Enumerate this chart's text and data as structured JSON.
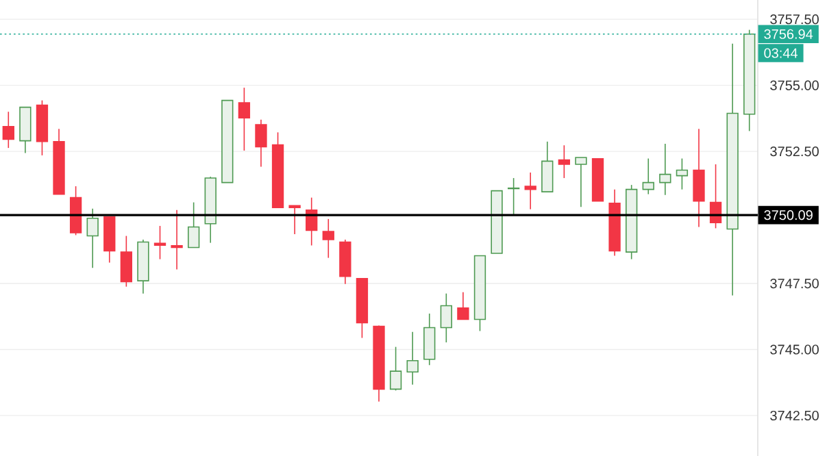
{
  "chart_data": {
    "type": "candlestick",
    "categories": [
      null,
      null,
      null,
      null,
      null,
      null,
      null,
      null,
      null,
      null,
      null,
      null,
      null,
      null,
      null,
      null,
      null,
      null,
      null,
      null,
      null,
      null,
      null,
      null,
      null,
      null,
      null,
      null,
      null,
      null,
      null,
      null,
      null,
      null,
      null,
      null,
      null,
      null,
      null,
      null,
      null,
      null,
      null,
      null,
      null
    ],
    "ohlc": [
      [
        3753.44,
        3754.0,
        3752.63,
        3752.96
      ],
      [
        3752.9,
        3754.17,
        3752.44,
        3754.17
      ],
      [
        3754.25,
        3754.43,
        3752.35,
        3752.87
      ],
      [
        3752.87,
        3753.35,
        3750.88,
        3750.88
      ],
      [
        3750.75,
        3751.18,
        3749.33,
        3749.42
      ],
      [
        3749.3,
        3750.33,
        3748.09,
        3749.97
      ],
      [
        3750.02,
        3750.02,
        3748.29,
        3748.73
      ],
      [
        3748.69,
        3749.3,
        3747.38,
        3747.57
      ],
      [
        3747.6,
        3749.16,
        3747.12,
        3749.07
      ],
      [
        3749.02,
        3749.68,
        3748.42,
        3748.95
      ],
      [
        3748.93,
        3750.28,
        3748.03,
        3748.86
      ],
      [
        3748.86,
        3750.57,
        3748.86,
        3749.64
      ],
      [
        3749.76,
        3751.54,
        3749.04,
        3751.49
      ],
      [
        3751.32,
        3754.43,
        3751.32,
        3754.43
      ],
      [
        3754.34,
        3754.91,
        3752.53,
        3753.77
      ],
      [
        3753.51,
        3753.7,
        3751.92,
        3752.67
      ],
      [
        3752.75,
        3753.22,
        3750.37,
        3750.37
      ],
      [
        3750.45,
        3750.45,
        3749.37,
        3750.37
      ],
      [
        3750.28,
        3750.75,
        3748.94,
        3749.51
      ],
      [
        3749.47,
        3749.94,
        3748.47,
        3749.16
      ],
      [
        3749.07,
        3749.16,
        3747.48,
        3747.77
      ],
      [
        3747.69,
        3747.69,
        3745.44,
        3746.01
      ],
      [
        3745.88,
        3745.91,
        3743.03,
        3743.5
      ],
      [
        3743.5,
        3745.1,
        3743.45,
        3744.18
      ],
      [
        3744.15,
        3745.67,
        3743.67,
        3744.58
      ],
      [
        3744.63,
        3746.36,
        3744.41,
        3745.83
      ],
      [
        3745.83,
        3747.12,
        3745.27,
        3746.66
      ],
      [
        3746.57,
        3747.17,
        3746.14,
        3746.14
      ],
      [
        3746.14,
        3748.55,
        3745.7,
        3748.55
      ],
      [
        3748.64,
        3751.01,
        3748.64,
        3751.01
      ],
      [
        3751.09,
        3751.49,
        3750.11,
        3751.11
      ],
      [
        3751.18,
        3751.7,
        3750.31,
        3751.06
      ],
      [
        3750.97,
        3752.87,
        3750.97,
        3752.13
      ],
      [
        3752.18,
        3752.73,
        3751.49,
        3752.01
      ],
      [
        3752.01,
        3752.27,
        3750.4,
        3752.27
      ],
      [
        3752.22,
        3752.22,
        3750.62,
        3750.62
      ],
      [
        3750.54,
        3751.06,
        3748.55,
        3748.73
      ],
      [
        3748.69,
        3751.23,
        3748.42,
        3751.06
      ],
      [
        3751.06,
        3752.23,
        3750.88,
        3751.32
      ],
      [
        3751.32,
        3752.79,
        3750.85,
        3751.63
      ],
      [
        3751.58,
        3752.23,
        3751.06,
        3751.79
      ],
      [
        3751.79,
        3753.35,
        3749.64,
        3750.62
      ],
      [
        3750.57,
        3752.01,
        3749.59,
        3749.8
      ],
      [
        3749.56,
        3756.58,
        3747.05,
        3753.94
      ],
      [
        3753.91,
        3757.1,
        3753.27,
        3756.94
      ]
    ],
    "colors": [
      "#f23645",
      "#4e9a52",
      "#f23645",
      "#f23645",
      "#f23645",
      "#4e9a52",
      "#f23645",
      "#f23645",
      "#4e9a52",
      "#f23645",
      "#f23645",
      "#4e9a52",
      "#4e9a52",
      "#4e9a52",
      "#f23645",
      "#f23645",
      "#f23645",
      "#f23645",
      "#f23645",
      "#f23645",
      "#f23645",
      "#f23645",
      "#f23645",
      "#4e9a52",
      "#4e9a52",
      "#4e9a52",
      "#4e9a52",
      "#f23645",
      "#4e9a52",
      "#4e9a52",
      "#4e9a52",
      "#f23645",
      "#4e9a52",
      "#f23645",
      "#4e9a52",
      "#f23645",
      "#f23645",
      "#4e9a52",
      "#4e9a52",
      "#4e9a52",
      "#4e9a52",
      "#f23645",
      "#f23645",
      "#4e9a52",
      "#4e9a52"
    ],
    "ylim": [
      3740.97,
      3758.23
    ],
    "yticks": [
      {
        "value": 3742.5,
        "label": "3742.50"
      },
      {
        "value": 3745,
        "label": "3745.00"
      },
      {
        "value": 3747.5,
        "label": "3747.50"
      },
      {
        "value": 3752.5,
        "label": "3752.50"
      },
      {
        "value": 3755,
        "label": "3755.00"
      },
      {
        "value": 3757.5,
        "label": "3757.50"
      }
    ],
    "grid": "y",
    "tick_labels": "y",
    "ref_lines": [
      {
        "axis": "y",
        "value": 3750.09,
        "label": "3750.09",
        "color": "#000000",
        "line_style": "solid"
      },
      {
        "axis": "y",
        "value": 3756.94,
        "label": "3756.94",
        "color": "#22ab94",
        "line_style": "dotted"
      }
    ],
    "annotations": [
      "03:44"
    ]
  }
}
